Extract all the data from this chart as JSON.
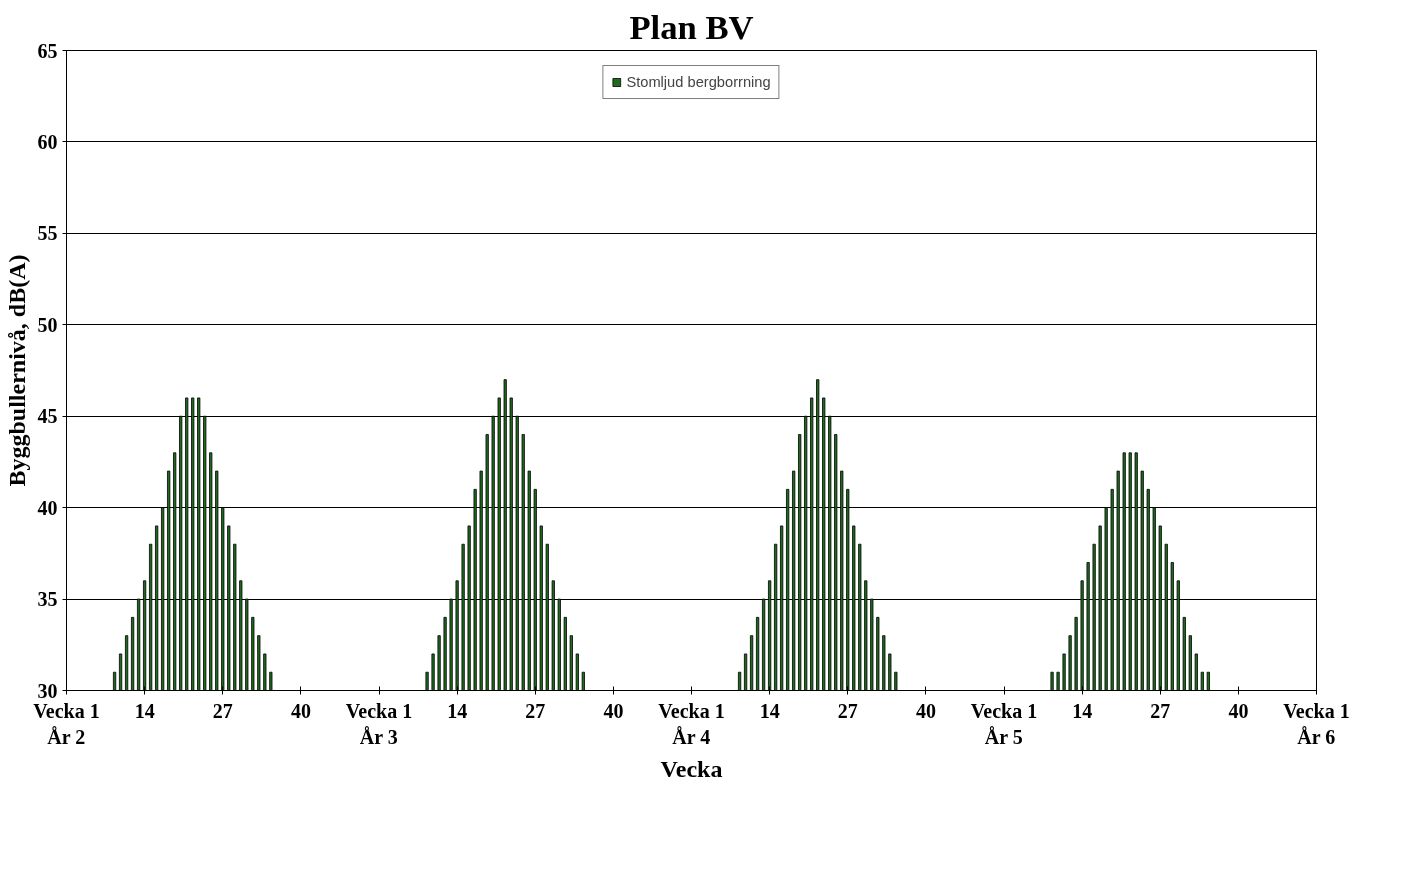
{
  "chart_data": {
    "type": "bar",
    "title": "Plan BV",
    "xlabel": "Vecka",
    "ylabel": "Byggbullernivå, dB(A)",
    "categories": [
      "Vecka 1\nÅr 2",
      null,
      null,
      null,
      null,
      null,
      null,
      null,
      null,
      null,
      null,
      null,
      null,
      "14",
      null,
      null,
      null,
      null,
      null,
      null,
      null,
      null,
      null,
      null,
      null,
      null,
      "27",
      null,
      null,
      null,
      null,
      null,
      null,
      null,
      null,
      null,
      null,
      null,
      null,
      "40",
      null,
      null,
      null,
      null,
      null,
      null,
      null,
      null,
      null,
      null,
      null,
      null,
      "Vecka 1\nÅr 3",
      null,
      null,
      null,
      null,
      null,
      null,
      null,
      null,
      null,
      null,
      null,
      null,
      "14",
      null,
      null,
      null,
      null,
      null,
      null,
      null,
      null,
      null,
      null,
      null,
      null,
      "27",
      null,
      null,
      null,
      null,
      null,
      null,
      null,
      null,
      null,
      null,
      null,
      null,
      "40",
      null,
      null,
      null,
      null,
      null,
      null,
      null,
      null,
      null,
      null,
      null,
      null,
      "Vecka 1\nÅr 4",
      null,
      null,
      null,
      null,
      null,
      null,
      null,
      null,
      null,
      null,
      null,
      null,
      "14",
      null,
      null,
      null,
      null,
      null,
      null,
      null,
      null,
      null,
      null,
      null,
      null,
      "27",
      null,
      null,
      null,
      null,
      null,
      null,
      null,
      null,
      null,
      null,
      null,
      null,
      "40",
      null,
      null,
      null,
      null,
      null,
      null,
      null,
      null,
      null,
      null,
      null,
      null,
      "Vecka 1\nÅr 5",
      null,
      null,
      null,
      null,
      null,
      null,
      null,
      null,
      null,
      null,
      null,
      null,
      "14",
      null,
      null,
      null,
      null,
      null,
      null,
      null,
      null,
      null,
      null,
      null,
      null,
      "27",
      null,
      null,
      null,
      null,
      null,
      null,
      null,
      null,
      null,
      null,
      null,
      null,
      "40",
      null,
      null,
      null,
      null,
      null,
      null,
      null,
      null,
      null,
      null,
      null,
      null,
      "Vecka 1\nÅr 6"
    ],
    "series": [
      {
        "name": "Stomljud bergborrning",
        "color": "#1e6b1e",
        "values": [
          null,
          null,
          null,
          null,
          null,
          null,
          null,
          null,
          31,
          32,
          33,
          34,
          35,
          36,
          38,
          39,
          40,
          42,
          43,
          45,
          46,
          46,
          46,
          45,
          43,
          42,
          40,
          39,
          38,
          36,
          35,
          34,
          33,
          32,
          31,
          null,
          null,
          null,
          null,
          null,
          null,
          null,
          null,
          null,
          null,
          null,
          null,
          null,
          null,
          null,
          null,
          null,
          null,
          null,
          null,
          null,
          null,
          null,
          null,
          null,
          31,
          32,
          33,
          34,
          35,
          36,
          38,
          39,
          41,
          42,
          44,
          45,
          46,
          47,
          46,
          45,
          44,
          42,
          41,
          39,
          38,
          36,
          35,
          34,
          33,
          32,
          31,
          null,
          null,
          null,
          null,
          null,
          null,
          null,
          null,
          null,
          null,
          null,
          null,
          null,
          null,
          null,
          null,
          null,
          null,
          null,
          null,
          null,
          null,
          null,
          null,
          null,
          31,
          32,
          33,
          34,
          35,
          36,
          38,
          39,
          41,
          42,
          44,
          45,
          46,
          47,
          46,
          45,
          44,
          42,
          41,
          39,
          38,
          36,
          35,
          34,
          33,
          32,
          31,
          null,
          null,
          null,
          null,
          null,
          null,
          null,
          null,
          null,
          null,
          null,
          null,
          null,
          null,
          null,
          null,
          null,
          null,
          null,
          null,
          null,
          null,
          null,
          null,
          null,
          31,
          31,
          32,
          33,
          34,
          36,
          37,
          38,
          39,
          40,
          41,
          42,
          43,
          43,
          43,
          42,
          41,
          40,
          39,
          38,
          37,
          36,
          34,
          33,
          32,
          31,
          31,
          null,
          null,
          null,
          null,
          null,
          null,
          null,
          null,
          null,
          null,
          null,
          null,
          null,
          null,
          null,
          null,
          null,
          null
        ]
      }
    ],
    "ylim": [
      30,
      65
    ],
    "yticks": [
      30,
      35,
      40,
      45,
      50,
      55,
      60,
      65
    ],
    "grid": "y",
    "legend": "top"
  }
}
